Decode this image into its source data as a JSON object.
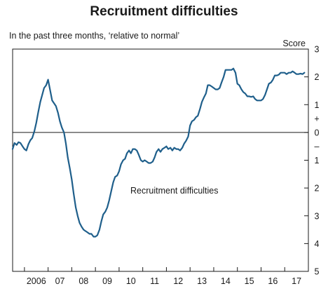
{
  "chart_data": {
    "type": "line",
    "title": "Recruitment difficulties",
    "subtitle": "In the past three months, ‘relative to normal’",
    "ylabel": "Score",
    "ylim": [
      -5,
      3
    ],
    "y_ticks": [
      {
        "value": 3,
        "label": "3"
      },
      {
        "value": 2,
        "label": "2"
      },
      {
        "value": 1,
        "label": "1"
      },
      {
        "value": 0.5,
        "label": "+"
      },
      {
        "value": 0,
        "label": "0"
      },
      {
        "value": -0.5,
        "label": "–"
      },
      {
        "value": -1,
        "label": "1"
      },
      {
        "value": -2,
        "label": "2"
      },
      {
        "value": -3,
        "label": "3"
      },
      {
        "value": -4,
        "label": "4"
      },
      {
        "value": -5,
        "label": "5"
      }
    ],
    "xlim": [
      2005.5,
      2018.0
    ],
    "x_tick_labels": [
      {
        "x": 2006.5,
        "label": "2006"
      },
      {
        "x": 2007.5,
        "label": "07"
      },
      {
        "x": 2008.5,
        "label": "08"
      },
      {
        "x": 2009.5,
        "label": "09"
      },
      {
        "x": 2010.5,
        "label": "10"
      },
      {
        "x": 2011.5,
        "label": "11"
      },
      {
        "x": 2012.5,
        "label": "12"
      },
      {
        "x": 2013.5,
        "label": "13"
      },
      {
        "x": 2014.5,
        "label": "14"
      },
      {
        "x": 2015.5,
        "label": "15"
      },
      {
        "x": 2016.5,
        "label": "16"
      },
      {
        "x": 2017.5,
        "label": "17"
      }
    ],
    "annotation": "Recruitment difficulties",
    "zero_line": true,
    "grid": false,
    "series": [
      {
        "name": "Recruitment difficulties",
        "color": "#1f5f8b",
        "x": [
          2005.5,
          2005.58,
          2005.67,
          2005.75,
          2005.83,
          2005.92,
          2006.0,
          2006.08,
          2006.17,
          2006.25,
          2006.33,
          2006.42,
          2006.5,
          2006.58,
          2006.67,
          2006.75,
          2006.83,
          2006.92,
          2007.0,
          2007.08,
          2007.17,
          2007.25,
          2007.33,
          2007.42,
          2007.5,
          2007.58,
          2007.67,
          2007.75,
          2007.83,
          2007.92,
          2008.0,
          2008.08,
          2008.17,
          2008.25,
          2008.33,
          2008.42,
          2008.5,
          2008.58,
          2008.67,
          2008.75,
          2008.83,
          2008.92,
          2009.0,
          2009.08,
          2009.17,
          2009.25,
          2009.33,
          2009.42,
          2009.5,
          2009.58,
          2009.67,
          2009.75,
          2009.83,
          2009.92,
          2010.0,
          2010.08,
          2010.17,
          2010.25,
          2010.33,
          2010.42,
          2010.5,
          2010.58,
          2010.67,
          2010.75,
          2010.83,
          2010.92,
          2011.0,
          2011.08,
          2011.17,
          2011.25,
          2011.33,
          2011.42,
          2011.5,
          2011.58,
          2011.67,
          2011.75,
          2011.83,
          2011.92,
          2012.0,
          2012.08,
          2012.17,
          2012.25,
          2012.33,
          2012.42,
          2012.5,
          2012.58,
          2012.67,
          2012.75,
          2012.83,
          2012.92,
          2013.0,
          2013.08,
          2013.17,
          2013.25,
          2013.33,
          2013.42,
          2013.5,
          2013.58,
          2013.67,
          2013.75,
          2013.83,
          2013.92,
          2014.0,
          2014.08,
          2014.17,
          2014.25,
          2014.33,
          2014.42,
          2014.5,
          2014.58,
          2014.67,
          2014.75,
          2014.83,
          2014.92,
          2015.0,
          2015.08,
          2015.17,
          2015.25,
          2015.33,
          2015.42,
          2015.5,
          2015.58,
          2015.67,
          2015.75,
          2015.83,
          2015.92,
          2016.0,
          2016.08,
          2016.17,
          2016.25,
          2016.33,
          2016.42,
          2016.5,
          2016.58,
          2016.67,
          2016.75,
          2016.83,
          2016.92,
          2017.0,
          2017.08,
          2017.17,
          2017.25,
          2017.33,
          2017.42,
          2017.5,
          2017.58,
          2017.67,
          2017.75,
          2017.83
        ],
        "values": [
          -0.6,
          -0.38,
          -0.45,
          -0.35,
          -0.38,
          -0.5,
          -0.6,
          -0.65,
          -0.42,
          -0.28,
          -0.2,
          0.05,
          0.35,
          0.72,
          1.1,
          1.35,
          1.6,
          1.7,
          1.9,
          1.55,
          1.15,
          1.05,
          0.95,
          0.7,
          0.4,
          0.18,
          0.0,
          -0.4,
          -0.9,
          -1.3,
          -1.7,
          -2.2,
          -2.7,
          -3.0,
          -3.25,
          -3.4,
          -3.5,
          -3.55,
          -3.6,
          -3.65,
          -3.65,
          -3.75,
          -3.75,
          -3.7,
          -3.5,
          -3.2,
          -2.95,
          -2.85,
          -2.7,
          -2.45,
          -2.1,
          -1.8,
          -1.6,
          -1.55,
          -1.4,
          -1.15,
          -1.0,
          -0.95,
          -0.75,
          -0.65,
          -0.75,
          -0.6,
          -0.6,
          -0.65,
          -0.8,
          -1.0,
          -1.05,
          -1.0,
          -1.05,
          -1.1,
          -1.1,
          -1.05,
          -0.9,
          -0.7,
          -0.6,
          -0.7,
          -0.6,
          -0.55,
          -0.5,
          -0.6,
          -0.55,
          -0.65,
          -0.55,
          -0.6,
          -0.6,
          -0.65,
          -0.55,
          -0.4,
          -0.3,
          -0.15,
          0.25,
          0.4,
          0.45,
          0.55,
          0.6,
          0.85,
          1.1,
          1.25,
          1.4,
          1.7,
          1.7,
          1.65,
          1.6,
          1.55,
          1.55,
          1.6,
          1.8,
          2.0,
          2.25,
          2.25,
          2.25,
          2.25,
          2.3,
          2.15,
          1.75,
          1.7,
          1.55,
          1.45,
          1.4,
          1.3,
          1.3,
          1.28,
          1.3,
          1.2,
          1.15,
          1.15,
          1.15,
          1.2,
          1.35,
          1.55,
          1.75,
          1.8,
          1.9,
          2.05,
          2.05,
          2.08,
          2.15,
          2.15,
          2.15,
          2.1,
          2.15,
          2.15,
          2.2,
          2.15,
          2.1,
          2.1,
          2.12,
          2.1,
          2.15
        ]
      }
    ]
  }
}
